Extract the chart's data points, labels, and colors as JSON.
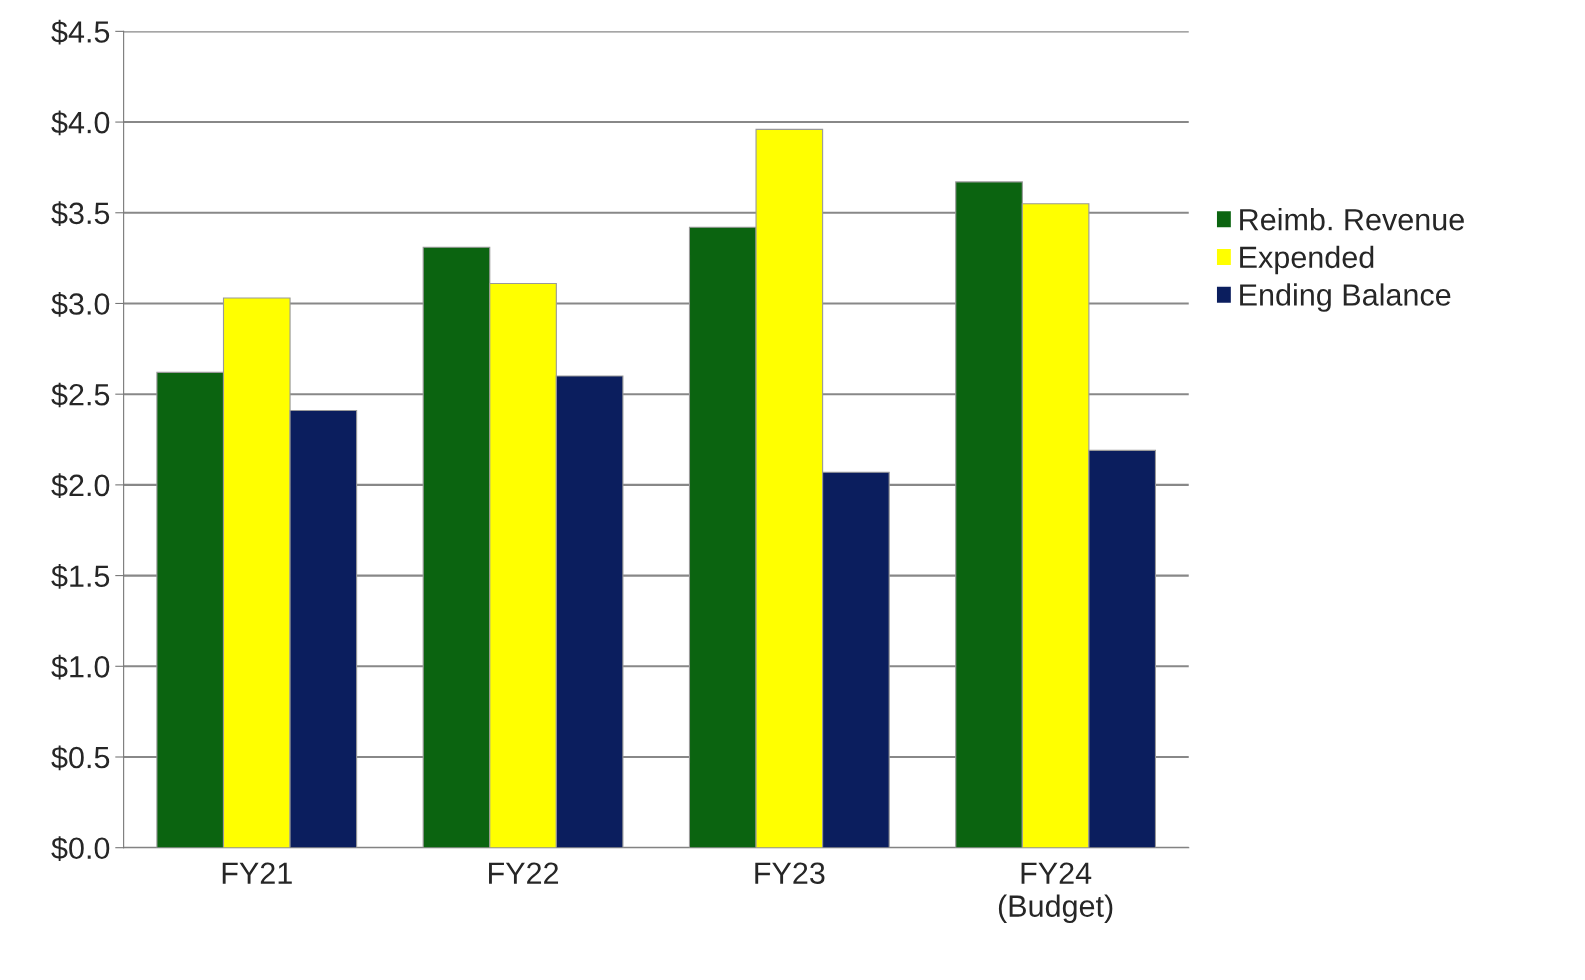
{
  "chart_data": {
    "type": "bar",
    "categories": [
      "FY21",
      "FY22",
      "FY23",
      "FY24\n(Budget)"
    ],
    "series": [
      {
        "name": "Reimb. Revenue",
        "color": "#0b6410",
        "values": [
          2.62,
          3.31,
          3.42,
          3.67
        ]
      },
      {
        "name": "Expended",
        "color": "#ffff00",
        "values": [
          3.03,
          3.11,
          3.96,
          3.55
        ]
      },
      {
        "name": "Ending Balance",
        "color": "#0b1e5e",
        "values": [
          2.41,
          2.6,
          2.07,
          2.19
        ]
      }
    ],
    "ylim": [
      0,
      4.5
    ],
    "yticks": [
      {
        "value": 0,
        "label": "$0.0"
      },
      {
        "value": 0.5,
        "label": "$0.5"
      },
      {
        "value": 1,
        "label": "$1.0"
      },
      {
        "value": 1.5,
        "label": "$1.5"
      },
      {
        "value": 2,
        "label": "$2.0"
      },
      {
        "value": 2.5,
        "label": "$2.5"
      },
      {
        "value": 3,
        "label": "$3.0"
      },
      {
        "value": 3.5,
        "label": "$3.5"
      },
      {
        "value": 4,
        "label": "$4.0"
      },
      {
        "value": 4.5,
        "label": "$4.5"
      }
    ],
    "grid": "y",
    "legend": "right"
  }
}
